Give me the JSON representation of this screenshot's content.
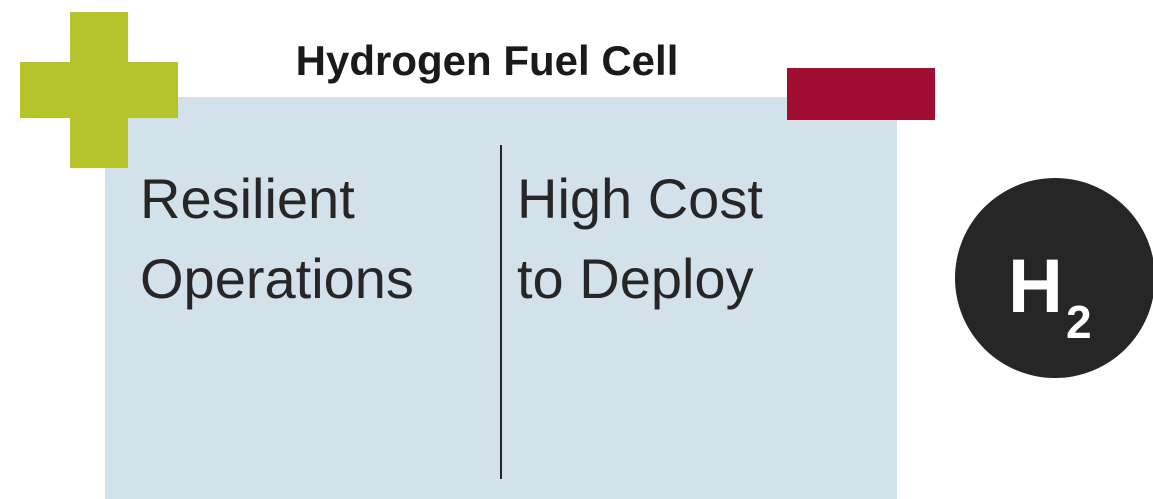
{
  "title": "Hydrogen Fuel Cell",
  "pros": {
    "lines": [
      "Resilient",
      "Operations"
    ]
  },
  "cons": {
    "lines": [
      "High Cost",
      "to Deploy"
    ]
  },
  "icon": {
    "symbol": "H",
    "subscript": "2"
  }
}
